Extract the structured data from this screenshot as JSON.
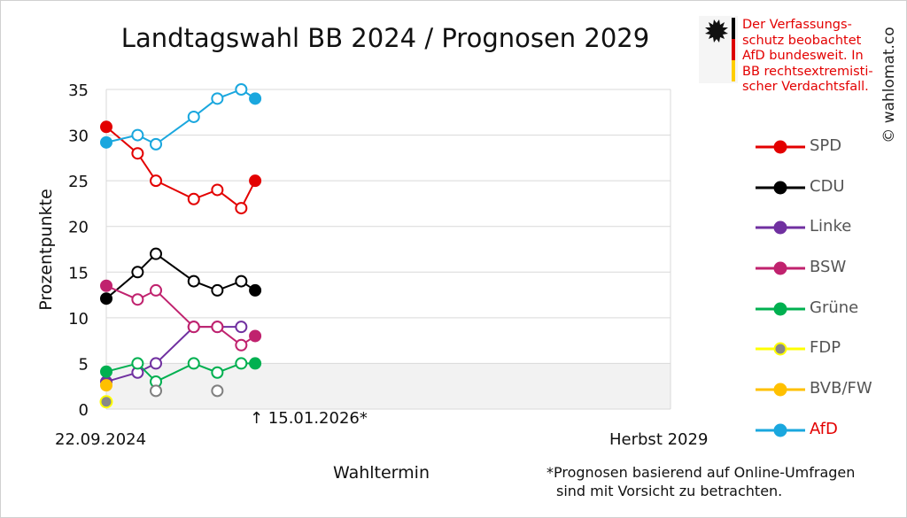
{
  "chart_data": {
    "type": "line",
    "title": "Landtagswahl BB 2024 / Prognosen 2029",
    "ylabel": "Prozentpunkte",
    "xlabel": "Wahltermin",
    "x_start_label": "22.09.2024",
    "x_end_label": "Herbst 2029",
    "current_marker_label": "↑ 15.01.2026*",
    "ylim": [
      0,
      35
    ],
    "yticks": [
      0,
      5,
      10,
      15,
      20,
      25,
      30,
      35
    ],
    "x": [
      "2024-09-22",
      "2025-01-01",
      "2025-03-01",
      "2025-07-01",
      "2025-09-15",
      "2025-12-01",
      "2026-01-15"
    ],
    "threshold_band": [
      0,
      5
    ],
    "grid": true,
    "legend_position": "right",
    "series": [
      {
        "name": "SPD",
        "color": "#e30000",
        "result": 30.9,
        "current": 25,
        "polls": [
          28,
          25,
          23,
          24,
          22
        ]
      },
      {
        "name": "CDU",
        "color": "#000000",
        "result": 12.1,
        "current": 13,
        "polls": [
          15,
          17,
          14,
          13,
          14
        ]
      },
      {
        "name": "Linke",
        "color": "#7030a0",
        "result": 3.0,
        "current": null,
        "polls": [
          4,
          5,
          9,
          9,
          9
        ]
      },
      {
        "name": "BSW",
        "color": "#c0226e",
        "result": 13.5,
        "current": 8,
        "polls": [
          12,
          13,
          9,
          9,
          7
        ]
      },
      {
        "name": "Grüne",
        "color": "#00b050",
        "result": 4.1,
        "current": 5,
        "polls": [
          5,
          3,
          5,
          4,
          5
        ]
      },
      {
        "name": "FDP",
        "color": "#ffff00",
        "fill": "#888888",
        "result": 0.8,
        "current": null,
        "polls": [
          null,
          2,
          null,
          2,
          null
        ]
      },
      {
        "name": "BVB/FW",
        "color": "#ffc000",
        "result": 2.6,
        "current": null,
        "polls": [
          null,
          null,
          null,
          null,
          null
        ]
      },
      {
        "name": "AfD",
        "color": "#1aa7de",
        "label_color": "#e30000",
        "result": 29.2,
        "current": 34,
        "polls": [
          30,
          29,
          32,
          34,
          35
        ]
      }
    ],
    "poll_marker_colors": {
      "FDP": "#808080"
    }
  },
  "notice": {
    "lines": [
      "Der Verfassungs-",
      "schutz beobachtet",
      "AfD bundesweit. In",
      "BB rechtsextremisti-",
      "scher Verdachtsfall."
    ]
  },
  "copyright": "© wahlomat.co",
  "footnote": {
    "line1": "*Prognosen basierend auf Online-Umfragen",
    "line2": "sind mit Vorsicht zu betrachten."
  },
  "colors": {
    "grid": "#d9d9d9",
    "band": "#f2f2f2",
    "notice": "#e30000"
  }
}
